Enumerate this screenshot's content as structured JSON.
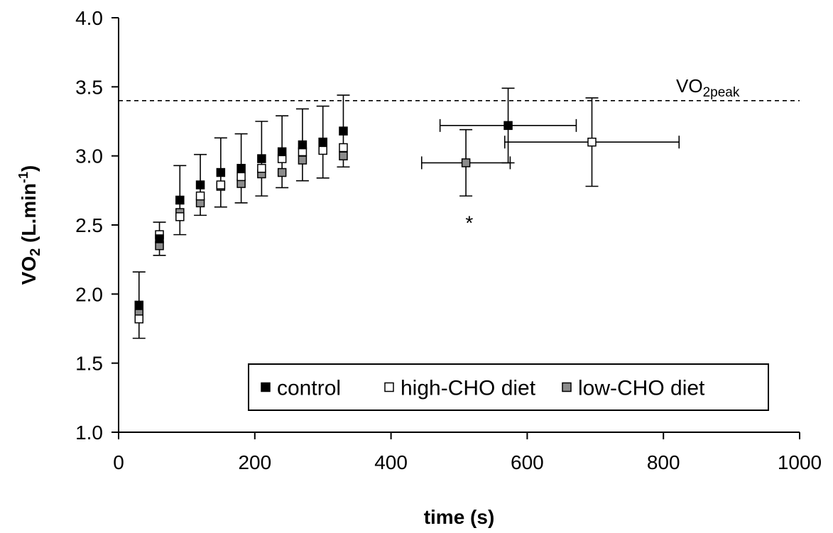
{
  "chart_data": {
    "type": "scatter",
    "xlabel": "time (s)",
    "ylabel_main": "VO",
    "ylabel_sub": "2",
    "ylabel_unit": " (L.min",
    "ylabel_sup": "-1",
    "ylabel_close": ")",
    "xlim": [
      0,
      1000
    ],
    "ylim": [
      1.0,
      4.0
    ],
    "xticks": [
      0,
      200,
      400,
      600,
      800,
      1000
    ],
    "yticks": [
      "1.0",
      "1.5",
      "2.0",
      "2.5",
      "3.0",
      "3.5",
      "4.0"
    ],
    "grid": false,
    "legend_position": "bottom-right",
    "reference_line": {
      "y": 3.4,
      "label_main": "VO",
      "label_sub": "2peak",
      "style": "dashed"
    },
    "annotations": [
      {
        "x": 515,
        "y": 2.55,
        "text": "*"
      }
    ],
    "series": [
      {
        "name": "control",
        "fill": "#000000",
        "stroke": "#000000",
        "points": [
          {
            "x": 30,
            "y": 1.92,
            "yerr": 0.24
          },
          {
            "x": 60,
            "y": 2.4,
            "yerr": 0.12
          },
          {
            "x": 90,
            "y": 2.68,
            "yerr": 0.25
          },
          {
            "x": 120,
            "y": 2.79,
            "yerr": 0.22
          },
          {
            "x": 150,
            "y": 2.88,
            "yerr": 0.25
          },
          {
            "x": 180,
            "y": 2.91,
            "yerr": 0.25
          },
          {
            "x": 210,
            "y": 2.98,
            "yerr": 0.27
          },
          {
            "x": 240,
            "y": 3.03,
            "yerr": 0.26
          },
          {
            "x": 270,
            "y": 3.08,
            "yerr": 0.26
          },
          {
            "x": 300,
            "y": 3.1,
            "yerr": 0.26
          },
          {
            "x": 330,
            "y": 3.18,
            "yerr": 0.26
          },
          {
            "x": 572,
            "y": 3.22,
            "yerr": 0.27,
            "xerr": 100
          }
        ]
      },
      {
        "name": "high-CHO diet",
        "fill": "#ffffff",
        "stroke": "#000000",
        "points": [
          {
            "x": 30,
            "y": 1.82
          },
          {
            "x": 60,
            "y": 2.43
          },
          {
            "x": 90,
            "y": 2.56
          },
          {
            "x": 120,
            "y": 2.71
          },
          {
            "x": 150,
            "y": 2.79
          },
          {
            "x": 180,
            "y": 2.85
          },
          {
            "x": 210,
            "y": 2.91
          },
          {
            "x": 240,
            "y": 2.98
          },
          {
            "x": 270,
            "y": 3.03
          },
          {
            "x": 300,
            "y": 3.04
          },
          {
            "x": 330,
            "y": 3.06
          },
          {
            "x": 695,
            "y": 3.1,
            "yerr": 0.32,
            "xerr": 128
          }
        ]
      },
      {
        "name": "low-CHO diet",
        "fill": "#8c8c8c",
        "stroke": "#000000",
        "points": [
          {
            "x": 30,
            "y": 1.86
          },
          {
            "x": 60,
            "y": 2.35
          },
          {
            "x": 90,
            "y": 2.59
          },
          {
            "x": 120,
            "y": 2.66
          },
          {
            "x": 150,
            "y": 2.78
          },
          {
            "x": 180,
            "y": 2.8
          },
          {
            "x": 210,
            "y": 2.87
          },
          {
            "x": 240,
            "y": 2.88
          },
          {
            "x": 270,
            "y": 2.97
          },
          {
            "x": 300,
            "y": 3.1
          },
          {
            "x": 330,
            "y": 3.0
          },
          {
            "x": 510,
            "y": 2.95,
            "yerr": 0.24,
            "xerr": 65
          }
        ]
      }
    ]
  }
}
